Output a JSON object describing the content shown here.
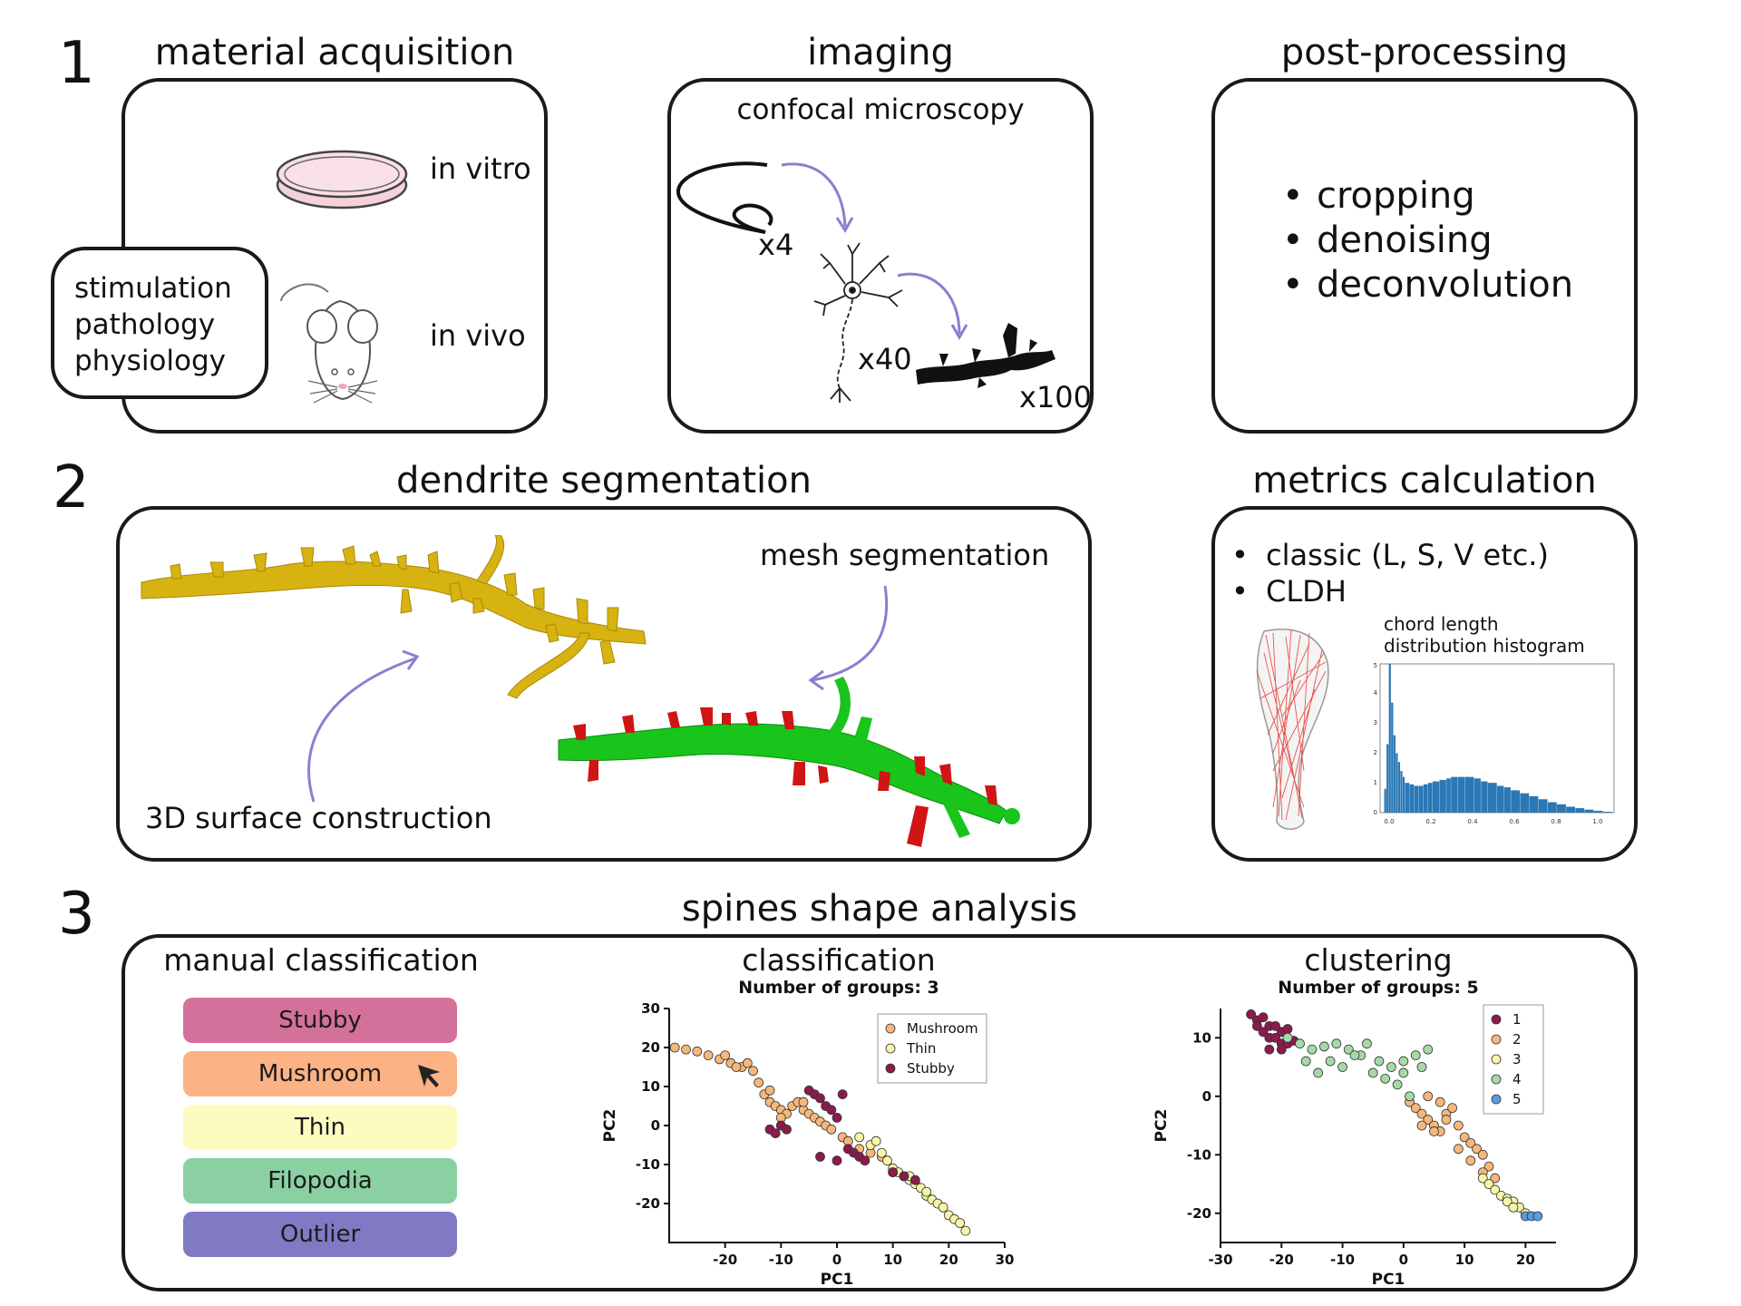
{
  "step1": {
    "number": "1",
    "material": {
      "title": "material acquisition",
      "in_vitro": "in vitro",
      "in_vivo": "in vivo",
      "conditions": [
        "stimulation",
        "pathology",
        "physiology"
      ]
    },
    "imaging": {
      "title": "imaging",
      "subtitle": "confocal microscopy",
      "mag_low": "x4",
      "mag_mid": "x40",
      "mag_high": "x100"
    },
    "postprocessing": {
      "title": "post-processing",
      "items": [
        "cropping",
        "denoising",
        "deconvolution"
      ]
    }
  },
  "step2": {
    "number": "2",
    "segmentation": {
      "title": "dendrite segmentation",
      "mesh_label": "mesh segmentation",
      "surface_label": "3D surface construction"
    },
    "metrics": {
      "title": "metrics calculation",
      "items": [
        "classic (L, S, V etc.)",
        "CLDH"
      ],
      "histogram_label_line1": "chord length",
      "histogram_label_line2": "distribution histogram",
      "hist_yticks": [
        "0",
        "1",
        "2",
        "3",
        "4",
        "5"
      ],
      "hist_xticks": [
        "0.0",
        "0.2",
        "0.4",
        "0.6",
        "0.8",
        "1.0"
      ]
    }
  },
  "step3": {
    "number": "3",
    "title": "spines shape analysis",
    "manual": {
      "title": "manual classification",
      "categories": [
        {
          "label": "Stubby",
          "color": "#d4719a"
        },
        {
          "label": "Mushroom",
          "color": "#fbb284"
        },
        {
          "label": "Thin",
          "color": "#fdfcc0"
        },
        {
          "label": "Filopodia",
          "color": "#8ad0a2"
        },
        {
          "label": "Outlier",
          "color": "#8079c4"
        }
      ]
    },
    "classification": {
      "title": "classification",
      "subtitle": "Number of groups: 3"
    },
    "clustering": {
      "title": "clustering",
      "subtitle": "Number of groups: 5"
    }
  },
  "chart_data": [
    {
      "type": "scatter",
      "title": "Number of groups: 3",
      "xlabel": "PC1",
      "ylabel": "PC2",
      "xlim": [
        -30,
        30
      ],
      "ylim": [
        -30,
        30
      ],
      "xticks": [
        -20,
        -10,
        0,
        10,
        20,
        30
      ],
      "yticks": [
        30,
        20,
        10,
        0,
        -10,
        -20
      ],
      "legend": "top-right",
      "series": [
        {
          "name": "Mushroom",
          "color": "#f6b77b",
          "x": [
            -29,
            -27,
            -25,
            -23,
            -21,
            -19,
            -17,
            -15,
            -14,
            -13,
            -12,
            -11,
            -10,
            -9,
            -8,
            -7,
            -6,
            -5,
            -4,
            -3,
            -2,
            -1,
            1,
            2,
            4,
            6,
            8,
            -20,
            -18,
            -16,
            -12,
            -10,
            -6
          ],
          "y": [
            20,
            19.5,
            19,
            18,
            17,
            16,
            15,
            14,
            11,
            8,
            6,
            5,
            4,
            3,
            5,
            6,
            4,
            3,
            2,
            1,
            0,
            -1,
            -3,
            -4,
            -6,
            -7,
            -8,
            18,
            15,
            16,
            9,
            2,
            6
          ]
        },
        {
          "name": "Thin",
          "color": "#f6f6a6",
          "x": [
            4,
            6,
            8,
            9,
            10,
            11,
            12,
            13,
            14,
            15,
            16,
            17,
            18,
            19,
            20,
            21,
            22,
            23,
            7,
            10,
            13,
            16
          ],
          "y": [
            -3,
            -5,
            -7,
            -9,
            -11,
            -12,
            -13,
            -14,
            -15,
            -16,
            -18,
            -19,
            -20,
            -21,
            -23,
            -24,
            -25,
            -27,
            -4,
            -12,
            -13,
            -17
          ]
        },
        {
          "name": "Stubby",
          "color": "#8b1a4d",
          "x": [
            -12,
            -11,
            -10,
            -9,
            -5,
            -4,
            -3,
            -2,
            -1,
            0,
            1,
            2,
            3,
            4,
            5,
            10,
            12,
            14,
            -3,
            0
          ],
          "y": [
            -1,
            -2,
            0,
            -1,
            9,
            8,
            7,
            5,
            4,
            2,
            8,
            -6,
            -7,
            -8,
            -9,
            -12,
            -13,
            -14,
            -8,
            -9
          ]
        }
      ]
    },
    {
      "type": "scatter",
      "title": "Number of groups: 5",
      "xlabel": "PC1",
      "ylabel": "PC2",
      "xlim": [
        -30,
        25
      ],
      "ylim": [
        -25,
        15
      ],
      "xticks": [
        -30,
        -20,
        -10,
        0,
        10,
        20
      ],
      "yticks": [
        10,
        0,
        -10,
        -20
      ],
      "legend": "top-right",
      "series": [
        {
          "name": "1",
          "color": "#8b1a4d",
          "x": [
            -25,
            -24,
            -23,
            -22,
            -21,
            -20,
            -19,
            -24,
            -23,
            -22,
            -21,
            -20,
            -19,
            -18,
            -22,
            -20
          ],
          "y": [
            14,
            13,
            13.5,
            12,
            12,
            11,
            11.5,
            12,
            11,
            10,
            10,
            9,
            9,
            9.5,
            8,
            8
          ]
        },
        {
          "name": "2",
          "color": "#f6b77b",
          "x": [
            1,
            2,
            3,
            4,
            5,
            6,
            7,
            8,
            9,
            10,
            11,
            12,
            13,
            14,
            15,
            3,
            5,
            7,
            9,
            11,
            13,
            4,
            6
          ],
          "y": [
            -1,
            -2,
            -3,
            -4,
            -5,
            -6,
            -3,
            -2,
            -5,
            -7,
            -8,
            -9,
            -10,
            -12,
            -14,
            -5,
            -6,
            -4,
            -9,
            -11,
            -13,
            0,
            -1
          ]
        },
        {
          "name": "3",
          "color": "#f6f6a6",
          "x": [
            13,
            14,
            15,
            16,
            17,
            18,
            19,
            20,
            17,
            18
          ],
          "y": [
            -14,
            -15,
            -16,
            -17,
            -17.5,
            -18,
            -19,
            -20,
            -18,
            -19
          ]
        },
        {
          "name": "4",
          "color": "#a6d9a6",
          "x": [
            -19,
            -17,
            -15,
            -13,
            -11,
            -9,
            -7,
            -6,
            -4,
            -2,
            0,
            2,
            4,
            -16,
            -12,
            -8,
            -5,
            -3,
            0,
            3,
            -14,
            -10,
            -1,
            1
          ],
          "y": [
            10,
            9,
            8,
            8.5,
            9,
            8,
            7,
            9,
            6,
            5,
            6,
            7,
            8,
            6,
            6,
            7,
            4,
            3,
            4,
            5,
            4,
            5,
            2,
            0
          ]
        },
        {
          "name": "5",
          "color": "#5b9be0",
          "x": [
            20,
            21,
            22
          ],
          "y": [
            -20.5,
            -20.5,
            -20.5
          ]
        }
      ]
    },
    {
      "type": "bar",
      "title": "",
      "xlabel": "",
      "ylabel": "",
      "xlim": [
        0,
        1
      ],
      "ylim": [
        0,
        5
      ],
      "bins": [
        0.01,
        0.02,
        0.03,
        0.04,
        0.05,
        0.06,
        0.07,
        0.08,
        0.09,
        0.1,
        0.12,
        0.14,
        0.16,
        0.18,
        0.2,
        0.22,
        0.25,
        0.28,
        0.3,
        0.33,
        0.36,
        0.4,
        0.43,
        0.46,
        0.5,
        0.53,
        0.56,
        0.6,
        0.64,
        0.68,
        0.72,
        0.76,
        0.8,
        0.84,
        0.88,
        0.92,
        0.96
      ],
      "values": [
        0.8,
        2.3,
        5.0,
        3.7,
        2.6,
        2.0,
        1.7,
        1.4,
        1.2,
        1.0,
        0.95,
        0.9,
        0.9,
        0.95,
        1.0,
        1.05,
        1.1,
        1.15,
        1.2,
        1.2,
        1.2,
        1.15,
        1.05,
        1.0,
        0.9,
        0.85,
        0.75,
        0.65,
        0.55,
        0.45,
        0.35,
        0.28,
        0.2,
        0.15,
        0.1,
        0.06,
        0.03
      ],
      "color": "#2a78b6"
    }
  ]
}
